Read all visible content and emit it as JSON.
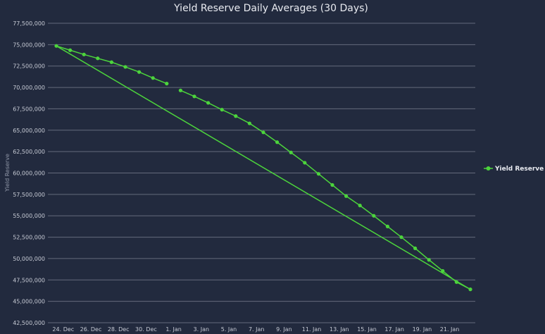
{
  "chart_data": {
    "type": "line",
    "title": "Yield Reserve Daily Averages (30 Days)",
    "ylabel": "Yield Reserve",
    "xlabel": "",
    "ylim": [
      42500000,
      77500000
    ],
    "y_ticks": [
      "77,500,000",
      "75,000,000",
      "72,500,000",
      "70,000,000",
      "67,500,000",
      "65,000,000",
      "62,500,000",
      "60,000,000",
      "57,500,000",
      "55,000,000",
      "52,500,000",
      "50,000,000",
      "47,500,000",
      "45,000,000",
      "42,500,000"
    ],
    "x_ticks": [
      {
        "day": 0,
        "label": "24. Dec"
      },
      {
        "day": 2,
        "label": "26. Dec"
      },
      {
        "day": 4,
        "label": "28. Dec"
      },
      {
        "day": 6,
        "label": "30. Dec"
      },
      {
        "day": 8,
        "label": "1. Jan"
      },
      {
        "day": 10,
        "label": "3. Jan"
      },
      {
        "day": 12,
        "label": "5. Jan"
      },
      {
        "day": 14,
        "label": "7. Jan"
      },
      {
        "day": 16,
        "label": "9. Jan"
      },
      {
        "day": 18,
        "label": "11. Jan"
      },
      {
        "day": 20,
        "label": "13. Jan"
      },
      {
        "day": 22,
        "label": "15. Jan"
      },
      {
        "day": 24,
        "label": "17. Jan"
      },
      {
        "day": 26,
        "label": "19. Jan"
      },
      {
        "day": 28,
        "label": "21. Jan"
      }
    ],
    "x_range": [
      -0.4,
      29.8
    ],
    "grid": true,
    "legend": "right",
    "series": [
      {
        "name": "Yield Reserve",
        "color": "#4cd43c",
        "note_points": "day index from 24. Dec",
        "points": [
          [
            -0.2,
            74850000
          ],
          [
            0.8,
            74350000
          ],
          [
            1.8,
            73850000
          ],
          [
            2.8,
            73400000
          ],
          [
            3.8,
            72950000
          ],
          [
            4.8,
            72400000
          ],
          [
            5.8,
            71800000
          ],
          [
            6.8,
            71100000
          ],
          [
            7.8,
            70450000
          ],
          null,
          [
            8.8,
            69650000
          ],
          [
            9.8,
            68950000
          ],
          [
            10.8,
            68200000
          ],
          [
            11.8,
            67400000
          ],
          [
            12.8,
            66650000
          ],
          [
            13.8,
            65800000
          ],
          [
            14.8,
            64750000
          ],
          [
            15.8,
            63600000
          ],
          [
            16.8,
            62400000
          ],
          [
            17.8,
            61200000
          ],
          [
            18.8,
            59900000
          ],
          [
            19.8,
            58600000
          ],
          [
            20.8,
            57300000
          ],
          [
            21.8,
            56200000
          ],
          [
            22.8,
            55000000
          ],
          [
            23.8,
            53750000
          ],
          [
            24.8,
            52500000
          ],
          [
            25.8,
            51200000
          ],
          [
            26.8,
            49850000
          ],
          [
            27.8,
            48550000
          ],
          [
            28.8,
            47250000
          ],
          [
            29.8,
            46400000
          ],
          [
            -0.2,
            74850000
          ]
        ]
      }
    ]
  }
}
